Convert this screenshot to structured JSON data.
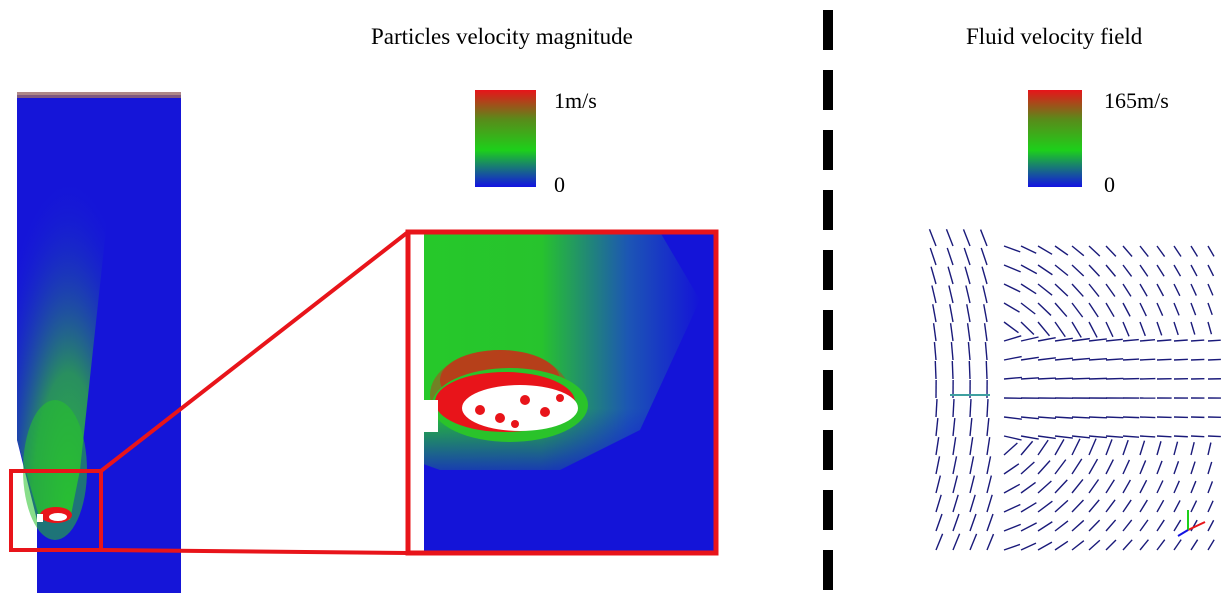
{
  "left_panel": {
    "title": "Particles velocity magnitude",
    "colorbar": {
      "max_label": "1m/s",
      "min_label": "0"
    },
    "colors": {
      "high": "#e8141a",
      "mid": "#1dd01a",
      "low": "#1313e2",
      "zoom_frame": "#e8141a"
    }
  },
  "right_panel": {
    "title": "Fluid velocity field",
    "colorbar": {
      "max_label": "165m/s",
      "min_label": "0"
    },
    "colors": {
      "vectors": "#1a1a7a",
      "axis_x": "#e8141a",
      "axis_y": "#1dd01a",
      "axis_z": "#1313e2"
    }
  },
  "divider": {
    "style": "dashed",
    "color": "#000000"
  }
}
